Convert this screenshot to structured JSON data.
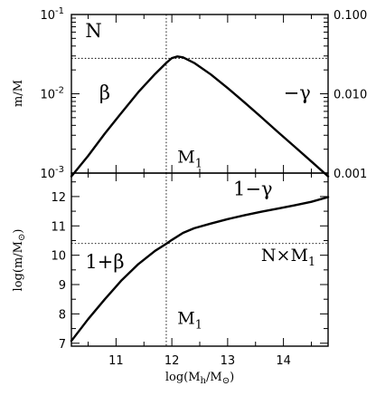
{
  "chart_data": [
    {
      "type": "line",
      "ylabel": "m/M",
      "xlim": [
        10.2,
        14.8
      ],
      "ylim": [
        0.001,
        0.1
      ],
      "yscale": "log",
      "grid": false,
      "yticks_left": [
        {
          "value": 0.001,
          "base": "10",
          "exp": "-3"
        },
        {
          "value": 0.01,
          "base": "10",
          "exp": "-2"
        },
        {
          "value": 0.1,
          "base": "10",
          "exp": "-1"
        }
      ],
      "yticks_right": [
        {
          "value": 0.001,
          "label": "0.001"
        },
        {
          "value": 0.01,
          "label": "0.010"
        },
        {
          "value": 0.1,
          "label": "0.100"
        }
      ],
      "series": [
        {
          "x": [
            10.2,
            10.5,
            10.8,
            11.1,
            11.4,
            11.7,
            11.9,
            12.0,
            12.1,
            12.2,
            12.4,
            12.7,
            13.0,
            13.3,
            13.6,
            13.9,
            14.2,
            14.5,
            14.8
          ],
          "y": [
            0.00091,
            0.00165,
            0.00315,
            0.0058,
            0.0105,
            0.0178,
            0.0245,
            0.0282,
            0.0296,
            0.0288,
            0.0245,
            0.0175,
            0.0118,
            0.0078,
            0.0051,
            0.0033,
            0.00215,
            0.0014,
            0.00091
          ]
        }
      ],
      "reference_lines": {
        "x": 11.9,
        "y": 0.028
      },
      "annotations": [
        {
          "text": "N",
          "x": 10.45,
          "y": 0.052
        },
        {
          "text": "β",
          "x": 10.7,
          "y": 0.0085
        },
        {
          "text": "−γ",
          "x": 14.0,
          "y": 0.0085
        },
        {
          "text": "M",
          "sub": "1",
          "x": 12.1,
          "y": 0.00135
        }
      ]
    },
    {
      "type": "line",
      "xlabel": "log(M_h/M_⊙)",
      "ylabel": "log(m/M_⊙)",
      "xlim": [
        10.2,
        14.8
      ],
      "ylim": [
        6.9,
        12.8
      ],
      "grid": false,
      "xticks": [
        11,
        12,
        13,
        14
      ],
      "yticks": [
        7,
        8,
        9,
        10,
        11,
        12
      ],
      "series": [
        {
          "x": [
            10.2,
            10.5,
            10.8,
            11.1,
            11.4,
            11.7,
            11.9,
            12.0,
            12.2,
            12.4,
            12.7,
            13.0,
            13.3,
            13.6,
            13.9,
            14.2,
            14.5,
            14.8
          ],
          "y": [
            7.08,
            7.82,
            8.5,
            9.15,
            9.7,
            10.15,
            10.39,
            10.52,
            10.76,
            10.92,
            11.08,
            11.23,
            11.36,
            11.48,
            11.59,
            11.7,
            11.82,
            11.98
          ]
        }
      ],
      "reference_lines": {
        "x": 11.9,
        "y": 10.4
      },
      "annotations": [
        {
          "text": "1−γ",
          "x": 13.1,
          "y": 12.05
        },
        {
          "text": "1+β",
          "x": 10.45,
          "y": 9.55
        },
        {
          "text": "N×M",
          "sub": "1",
          "x": 13.6,
          "y": 9.8
        },
        {
          "text": "M",
          "sub": "1",
          "x": 12.1,
          "y": 7.65
        }
      ]
    }
  ]
}
